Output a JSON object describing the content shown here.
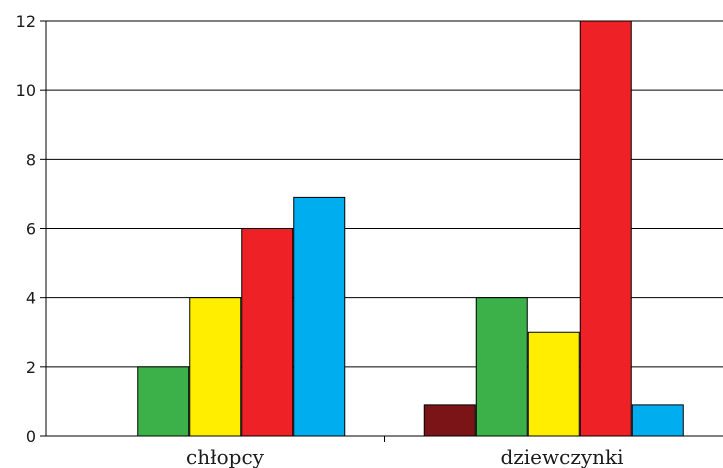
{
  "chart_data": {
    "type": "bar",
    "title": "",
    "xlabel": "",
    "ylabel": "",
    "ylim": [
      0,
      12
    ],
    "yticks": [
      0,
      2,
      4,
      6,
      8,
      10,
      12
    ],
    "grid": true,
    "legend": "none",
    "categories": [
      "chłopcy",
      "dziewczynki"
    ],
    "series": [
      {
        "color": "#7b1416",
        "values": [
          0,
          0.9
        ]
      },
      {
        "color": "#3cb049",
        "values": [
          2,
          4
        ]
      },
      {
        "color": "#ffee00",
        "values": [
          4,
          3
        ]
      },
      {
        "color": "#ee2127",
        "values": [
          6,
          12
        ]
      },
      {
        "color": "#00adef",
        "values": [
          6.9,
          0.9
        ]
      }
    ]
  }
}
